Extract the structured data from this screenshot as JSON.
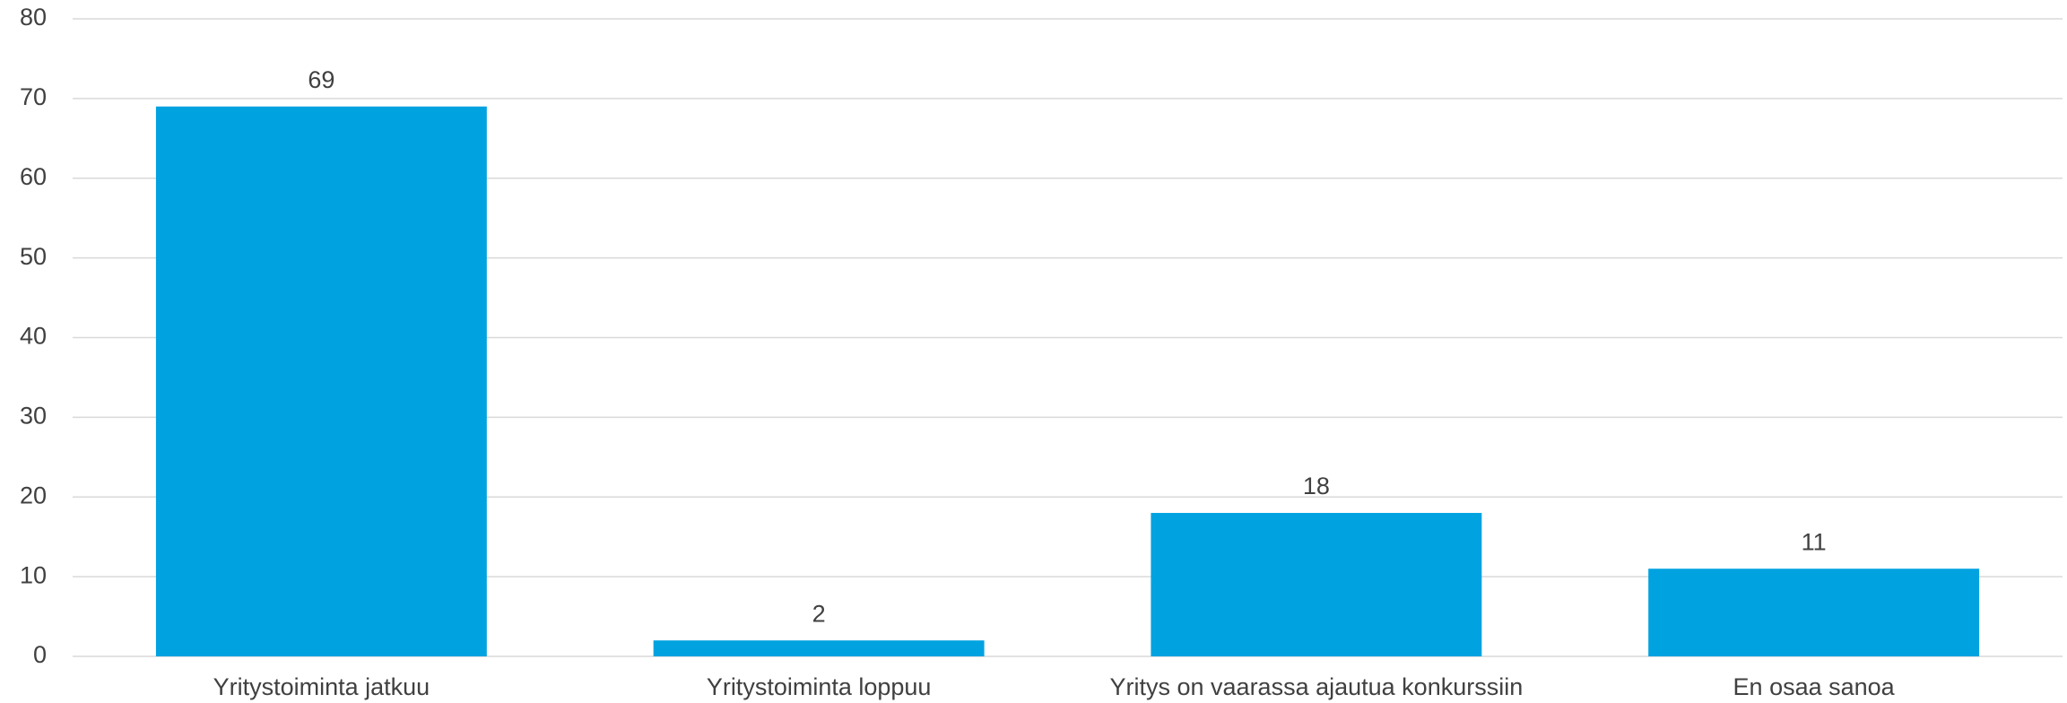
{
  "chart_data": {
    "type": "bar",
    "categories": [
      "Yritystoiminta jatkuu",
      "Yritystoiminta loppuu",
      "Yritys on vaarassa ajautua konkurssiin",
      "En osaa sanoa"
    ],
    "values": [
      69,
      2,
      18,
      11
    ],
    "color": "#00a2e0",
    "ylim": [
      0,
      80
    ],
    "yticks": [
      0,
      10,
      20,
      30,
      40,
      50,
      60,
      70,
      80
    ],
    "grid": true
  }
}
